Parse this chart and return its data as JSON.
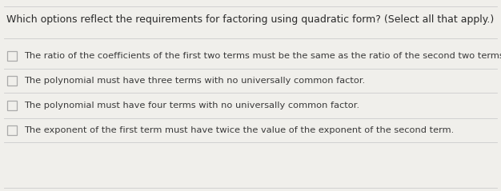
{
  "title": "Which options reflect the requirements for factoring using quadratic form? (Select all that apply.)",
  "options": [
    "The ratio of the coefficients of the first two terms must be the same as the ratio of the second two terms.",
    "The polynomial must have three terms with no universally common factor.",
    "The polynomial must have four terms with no universally common factor.",
    "The exponent of the first term must have twice the value of the exponent of the second term."
  ],
  "background_color": "#f0efeb",
  "title_color": "#2a2a2a",
  "option_color": "#3a3a3a",
  "checkbox_edge_color": "#aaaaaa",
  "line_color": "#cccccc",
  "title_fontsize": 9.0,
  "option_fontsize": 8.2,
  "fig_width": 6.26,
  "fig_height": 2.39
}
